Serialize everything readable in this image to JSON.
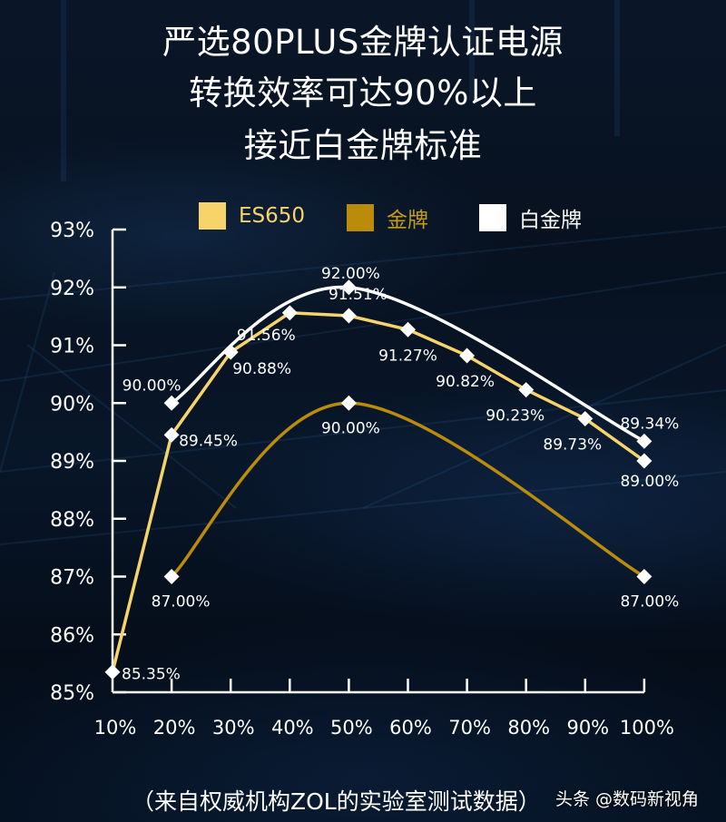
{
  "title": {
    "line1": "严选80PLUS金牌认证电源",
    "line2": "转换效率可达90%以上",
    "line3": "接近白金牌标准"
  },
  "legend": [
    {
      "label": "ES650",
      "color": "#F7D46A",
      "text_color": "#F7D46A"
    },
    {
      "label": "金牌",
      "color": "#BB8C0C",
      "text_color": "#C79A1A"
    },
    {
      "label": "白金牌",
      "color": "#FFFFFF",
      "text_color": "#FFFFFF"
    }
  ],
  "footer": {
    "source_note": "（来自权威机构ZOL的实验室测试数据）",
    "watermark": "头条 @数码新视角"
  },
  "chart_data": {
    "type": "line",
    "title": "严选80PLUS金牌认证电源 转换效率可达90%以上 接近白金牌标准",
    "xlabel": "",
    "ylabel": "",
    "categories": [
      "10%",
      "20%",
      "30%",
      "40%",
      "50%",
      "60%",
      "70%",
      "80%",
      "90%",
      "100%"
    ],
    "yticks": [
      "85%",
      "86%",
      "87%",
      "88%",
      "89%",
      "90%",
      "91%",
      "92%",
      "93%"
    ],
    "ylim": [
      85,
      93
    ],
    "grid": false,
    "legend_position": "top",
    "series": [
      {
        "name": "ES650",
        "color": "#F7D46A",
        "smooth": false,
        "values": [
          85.35,
          89.45,
          90.88,
          91.56,
          91.51,
          91.27,
          90.82,
          90.23,
          89.73,
          89.0
        ],
        "labels": [
          "85.35%",
          "89.45%",
          "90.88%",
          "91.56%",
          "91.51%",
          "91.27%",
          "90.82%",
          "90.23%",
          "89.73%",
          "89.00%"
        ]
      },
      {
        "name": "金牌",
        "color": "#BB8C0C",
        "smooth": true,
        "values": [
          null,
          87.0,
          null,
          null,
          90.0,
          null,
          null,
          null,
          null,
          87.0
        ],
        "labels": [
          null,
          "87.00%",
          null,
          null,
          "90.00%",
          null,
          null,
          null,
          null,
          "87.00%"
        ]
      },
      {
        "name": "白金牌",
        "color": "#FFFFFF",
        "smooth": true,
        "values": [
          null,
          90.0,
          null,
          null,
          92.0,
          null,
          null,
          null,
          null,
          89.34
        ],
        "labels": [
          null,
          "90.00%",
          null,
          null,
          "92.00%",
          null,
          null,
          null,
          null,
          "89.34%"
        ]
      }
    ]
  }
}
